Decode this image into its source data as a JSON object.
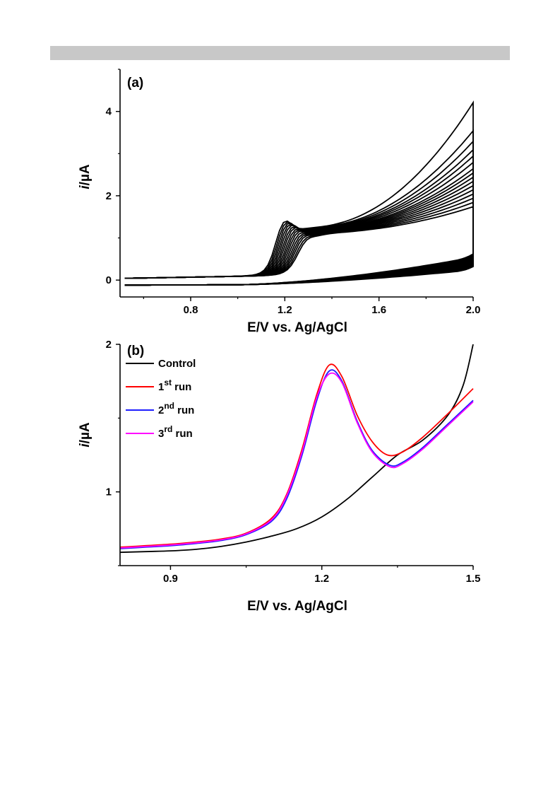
{
  "header": {
    "bar_color": "#c8c8c8"
  },
  "chart_data": [
    {
      "panel": "(a)",
      "type": "line",
      "xlabel": "E/V vs. Ag/AgCl",
      "ylabel": "i/µA",
      "xlim": [
        0.5,
        2.0
      ],
      "ylim": [
        -0.4,
        5.0
      ],
      "xticks": [
        0.8,
        1.2,
        1.6,
        2.0
      ],
      "xtick_labels": [
        "0.8",
        "1.2",
        "1.6",
        "2.0"
      ],
      "yticks": [
        0,
        2,
        4
      ],
      "ytick_labels": [
        "0",
        "2",
        "4"
      ],
      "grid": false,
      "line_color": "#000000",
      "cycles": [
        {
          "peak": 1.45,
          "ret": 1.18,
          "end": 4.22
        },
        {
          "peak": 1.42,
          "ret": 1.17,
          "end": 3.55
        },
        {
          "peak": 1.39,
          "ret": 1.16,
          "end": 3.3
        },
        {
          "peak": 1.36,
          "ret": 1.15,
          "end": 3.1
        },
        {
          "peak": 1.33,
          "ret": 1.14,
          "end": 2.95
        },
        {
          "peak": 1.29,
          "ret": 1.13,
          "end": 2.8
        },
        {
          "peak": 1.26,
          "ret": 1.12,
          "end": 2.65
        },
        {
          "peak": 1.22,
          "ret": 1.11,
          "end": 2.55
        },
        {
          "peak": 1.19,
          "ret": 1.1,
          "end": 2.45
        },
        {
          "peak": 1.16,
          "ret": 1.09,
          "end": 2.35
        },
        {
          "peak": 1.12,
          "ret": 1.08,
          "end": 2.25
        },
        {
          "peak": 1.08,
          "ret": 1.07,
          "end": 2.15
        },
        {
          "peak": 1.05,
          "ret": 1.06,
          "end": 2.05
        },
        {
          "peak": 1.02,
          "ret": 1.05,
          "end": 1.95
        },
        {
          "peak": 0.98,
          "ret": 1.04,
          "end": 1.85
        },
        {
          "peak": 0.95,
          "ret": 1.03,
          "end": 1.75
        }
      ]
    },
    {
      "panel": "(b)",
      "type": "line",
      "xlabel": "E/V vs. Ag/AgCl",
      "ylabel": "i/µA",
      "xlim": [
        0.8,
        1.5
      ],
      "ylim": [
        0.5,
        2.0
      ],
      "xticks": [
        0.9,
        1.2,
        1.5
      ],
      "xtick_labels": [
        "0.9",
        "1.2",
        "1.5"
      ],
      "yticks": [
        1,
        2
      ],
      "ytick_labels": [
        "1",
        "2"
      ],
      "grid": false,
      "legend": "top-left",
      "series": [
        {
          "name": "Control",
          "color": "#000000",
          "x": [
            0.8,
            0.85,
            0.9,
            0.95,
            1.0,
            1.05,
            1.1,
            1.15,
            1.2,
            1.25,
            1.3,
            1.35,
            1.4,
            1.45,
            1.48,
            1.5
          ],
          "y": [
            0.59,
            0.595,
            0.6,
            0.61,
            0.63,
            0.66,
            0.7,
            0.75,
            0.83,
            0.95,
            1.1,
            1.25,
            1.35,
            1.52,
            1.72,
            2.0
          ]
        },
        {
          "name": "1",
          "sup": "st",
          "suffix": " run",
          "color": "#ff0000",
          "x": [
            0.8,
            0.85,
            0.9,
            0.95,
            1.0,
            1.05,
            1.1,
            1.13,
            1.16,
            1.19,
            1.215,
            1.24,
            1.27,
            1.3,
            1.33,
            1.36,
            1.4,
            1.45,
            1.5
          ],
          "y": [
            0.625,
            0.635,
            0.645,
            0.66,
            0.68,
            0.72,
            0.82,
            0.98,
            1.28,
            1.66,
            1.86,
            1.78,
            1.52,
            1.34,
            1.25,
            1.27,
            1.37,
            1.53,
            1.7
          ]
        },
        {
          "name": "2",
          "sup": "nd",
          "suffix": " run",
          "color": "#1f1fff",
          "x": [
            0.8,
            0.85,
            0.9,
            0.95,
            1.0,
            1.05,
            1.1,
            1.13,
            1.16,
            1.19,
            1.215,
            1.24,
            1.27,
            1.3,
            1.335,
            1.36,
            1.4,
            1.45,
            1.5
          ],
          "y": [
            0.615,
            0.625,
            0.635,
            0.65,
            0.67,
            0.71,
            0.8,
            0.95,
            1.24,
            1.62,
            1.82,
            1.75,
            1.48,
            1.28,
            1.18,
            1.2,
            1.3,
            1.46,
            1.62
          ]
        },
        {
          "name": "3",
          "sup": "rd",
          "suffix": " run",
          "color": "#ff00ff",
          "x": [
            0.8,
            0.85,
            0.9,
            0.95,
            1.0,
            1.05,
            1.1,
            1.13,
            1.16,
            1.19,
            1.215,
            1.24,
            1.27,
            1.3,
            1.335,
            1.36,
            1.4,
            1.45,
            1.5
          ],
          "y": [
            0.62,
            0.63,
            0.64,
            0.655,
            0.675,
            0.715,
            0.81,
            0.97,
            1.26,
            1.64,
            1.8,
            1.74,
            1.47,
            1.27,
            1.17,
            1.19,
            1.29,
            1.45,
            1.61
          ]
        }
      ]
    }
  ]
}
